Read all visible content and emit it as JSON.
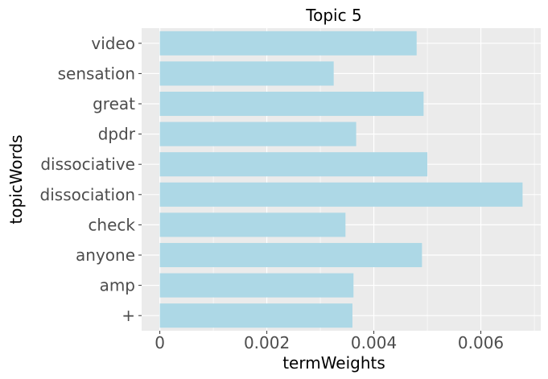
{
  "chart_data": {
    "type": "bar",
    "orientation": "horizontal",
    "title": "Topic 5",
    "xlabel": "termWeights",
    "ylabel": "topicWords",
    "categories": [
      "video",
      "sensation",
      "great",
      "dpdr",
      "dissociative",
      "dissociation",
      "check",
      "anyone",
      "amp",
      "+"
    ],
    "values": [
      0.0048,
      0.00325,
      0.00493,
      0.00367,
      0.005,
      0.00678,
      0.00347,
      0.0049,
      0.00362,
      0.0036
    ],
    "xlim": [
      -0.00034,
      0.00712
    ],
    "xticks": [
      0,
      0.002,
      0.004,
      0.006
    ],
    "xtick_labels": [
      "0",
      "0.002",
      "0.004",
      "0.006"
    ],
    "grid": true,
    "colors": {
      "bar": "#add8e6",
      "panel": "#ebebeb",
      "grid_major": "#ffffff",
      "tick_text": "#4d4d4d"
    }
  }
}
